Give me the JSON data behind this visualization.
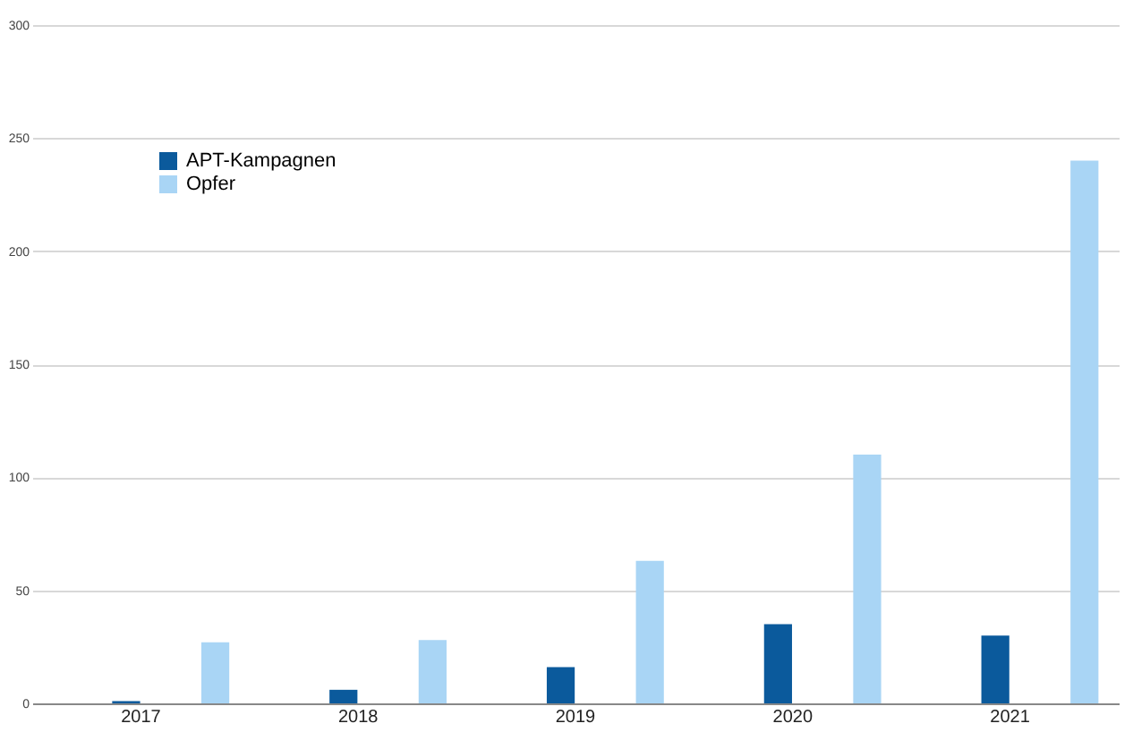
{
  "chart_data": {
    "type": "bar",
    "categories": [
      "2017",
      "2018",
      "2019",
      "2020",
      "2021"
    ],
    "series": [
      {
        "name": "APT-Kampagnen",
        "color": "#0b5a9c",
        "values": [
          1,
          6,
          16,
          35,
          30
        ]
      },
      {
        "name": "Opfer",
        "color": "#a9d5f5",
        "values": [
          27,
          28,
          63,
          110,
          240
        ]
      }
    ],
    "ylim": [
      0,
      300
    ],
    "yticks": [
      0,
      50,
      100,
      150,
      200,
      250,
      300
    ],
    "grid": "y",
    "legend": "top left"
  }
}
